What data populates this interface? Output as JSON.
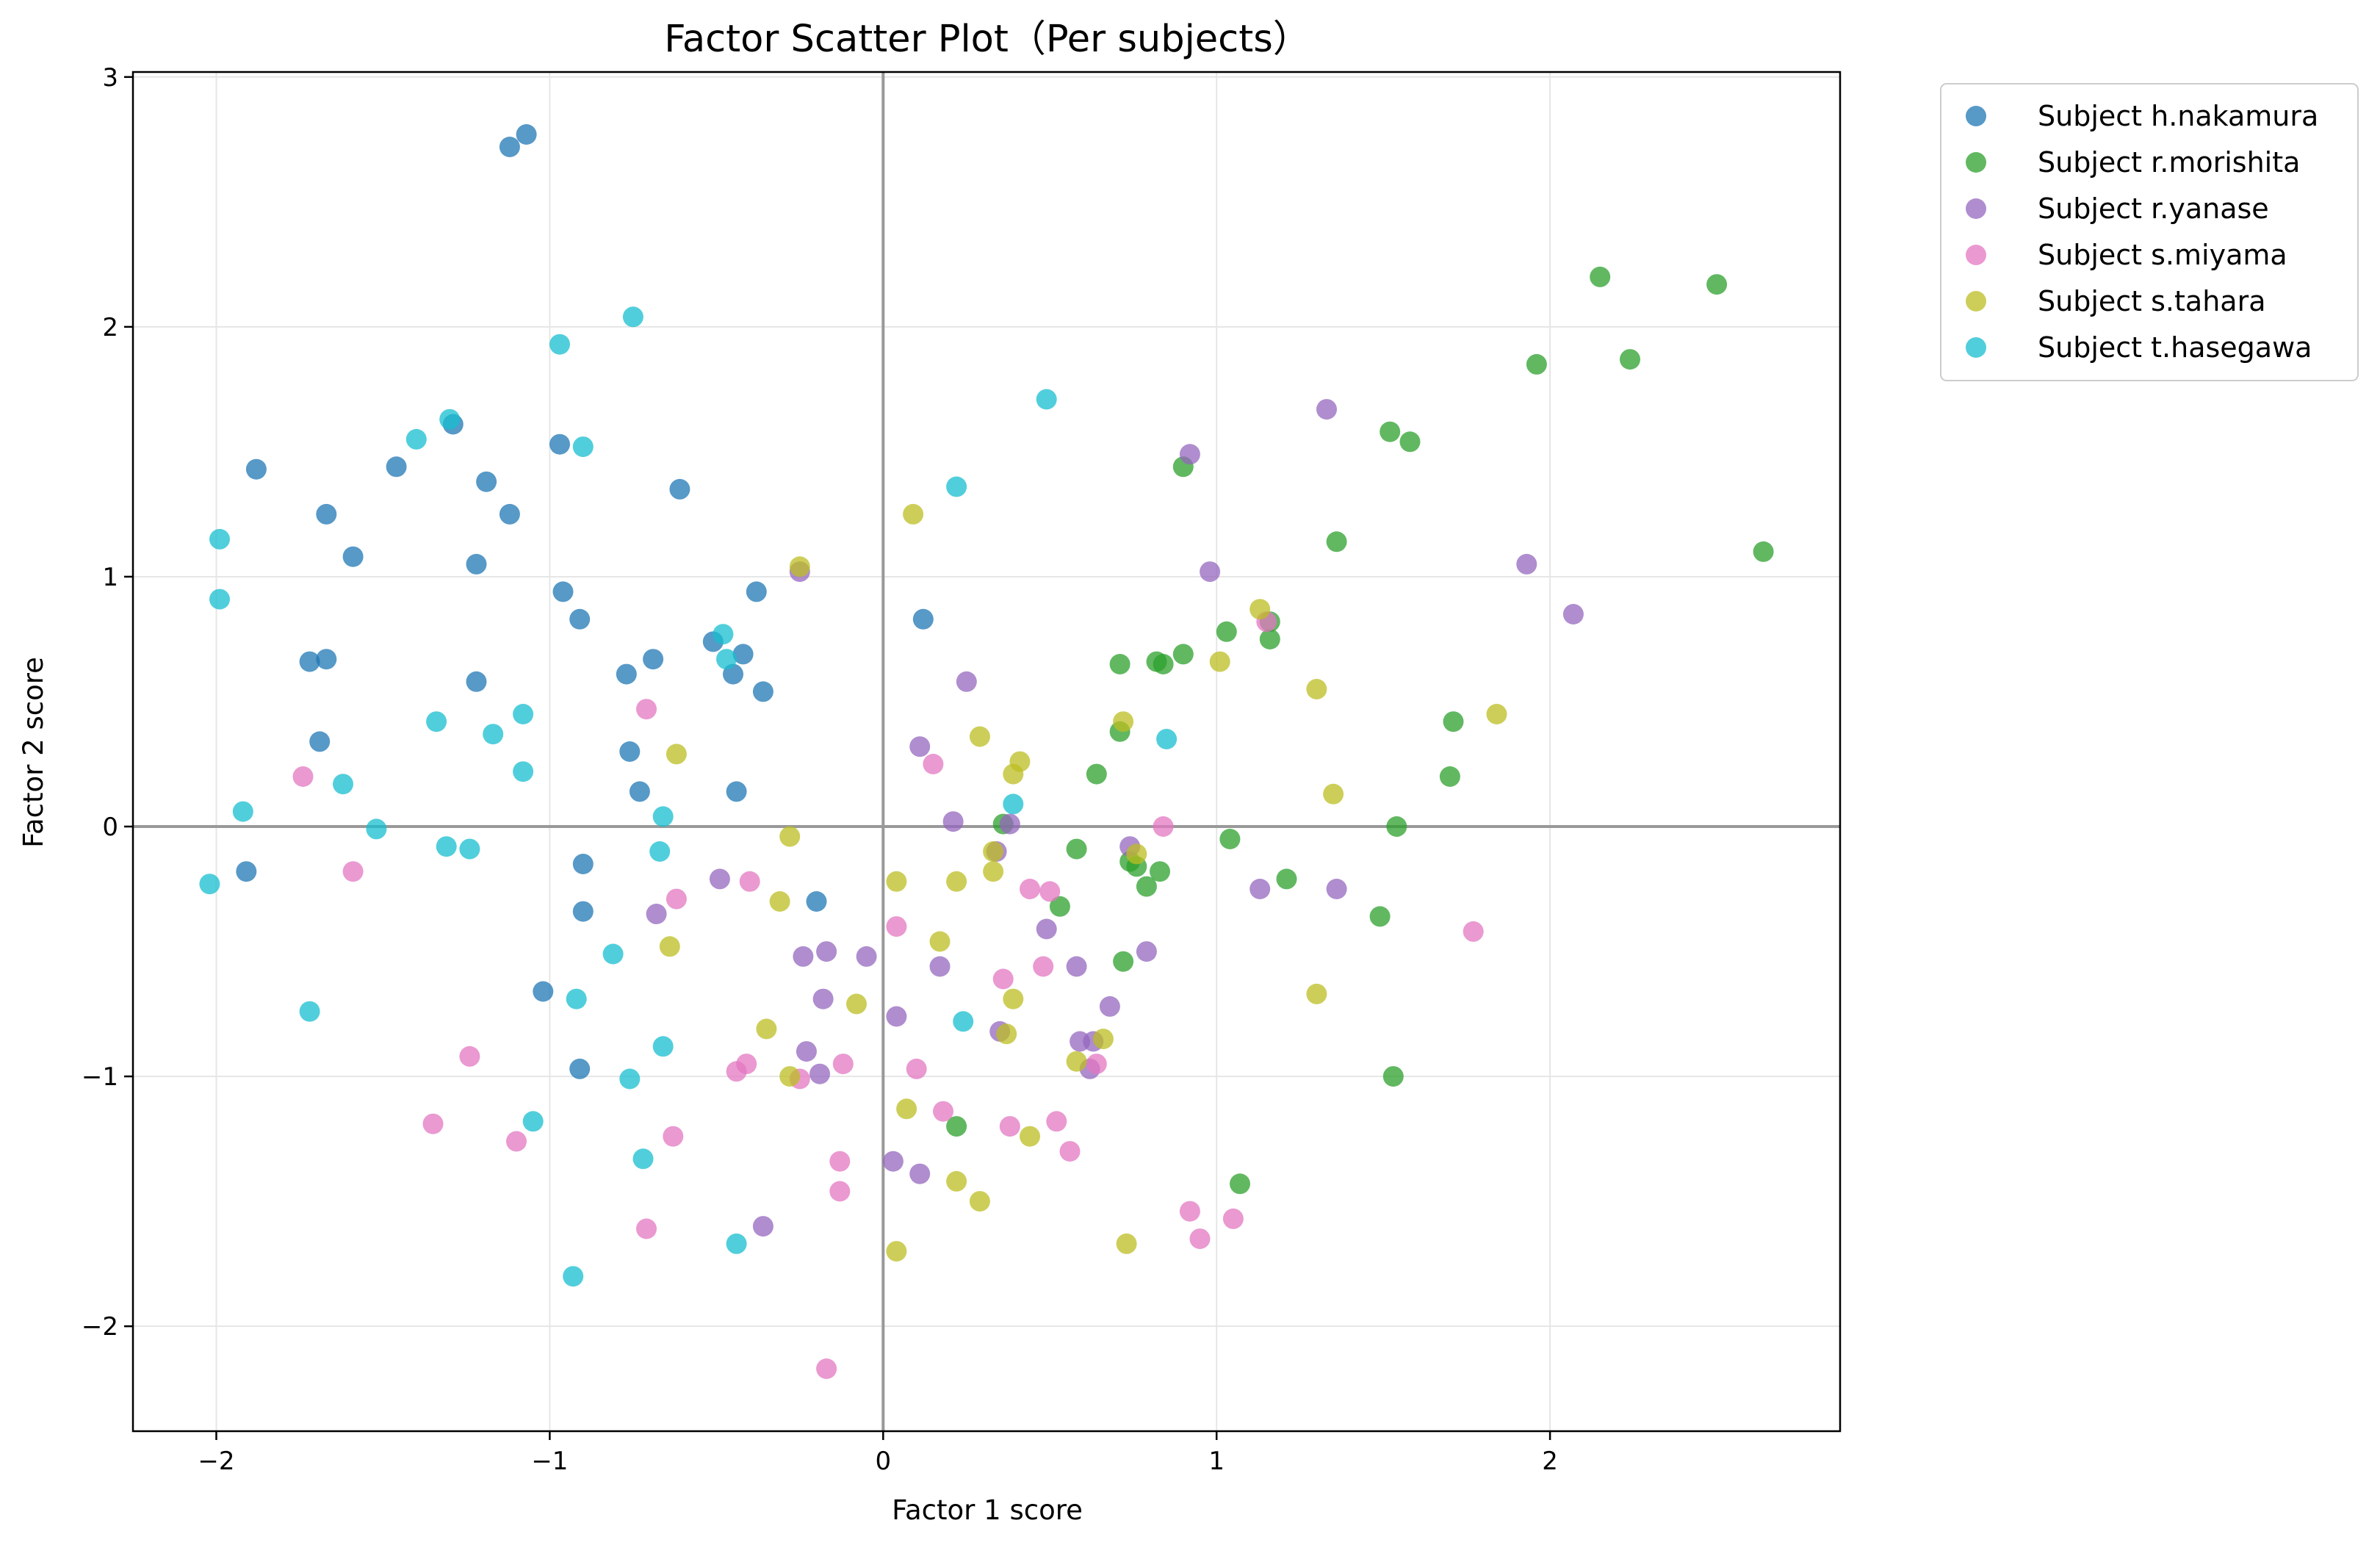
{
  "chart_data": {
    "type": "scatter",
    "title": "Factor Scatter Plot（Per subjects）",
    "xlabel": "Factor 1 score",
    "ylabel": "Factor 2 score",
    "xlim": [
      -2.25,
      2.87
    ],
    "ylim": [
      -2.42,
      3.02
    ],
    "xticks": [
      -2,
      -1,
      0,
      1,
      2
    ],
    "yticks": [
      -2,
      -1,
      0,
      1,
      2,
      3
    ],
    "xtick_labels": [
      "−2",
      "−1",
      "0",
      "1",
      "2"
    ],
    "ytick_labels": [
      "−2",
      "−1",
      "0",
      "1",
      "2",
      "3"
    ],
    "grid": true,
    "reference_lines": {
      "x": 0,
      "y": 0
    },
    "legend_position": "outside-top-right",
    "series": [
      {
        "name": "Subject h.nakamura",
        "color": "#1f77b4",
        "points": [
          [
            -1.07,
            2.77
          ],
          [
            -1.12,
            2.72
          ],
          [
            -1.88,
            1.43
          ],
          [
            -1.67,
            1.25
          ],
          [
            -1.59,
            1.08
          ],
          [
            -1.46,
            1.44
          ],
          [
            -1.29,
            1.61
          ],
          [
            -1.19,
            1.38
          ],
          [
            -1.12,
            1.25
          ],
          [
            -1.22,
            1.05
          ],
          [
            -0.97,
            1.53
          ],
          [
            -0.61,
            1.35
          ],
          [
            -0.96,
            0.94
          ],
          [
            -0.91,
            0.83
          ],
          [
            -0.38,
            0.94
          ],
          [
            -1.72,
            0.66
          ],
          [
            -1.67,
            0.67
          ],
          [
            -1.22,
            0.58
          ],
          [
            -0.77,
            0.61
          ],
          [
            -0.69,
            0.67
          ],
          [
            -0.51,
            0.74
          ],
          [
            -0.42,
            0.69
          ],
          [
            -0.45,
            0.61
          ],
          [
            -0.36,
            0.54
          ],
          [
            -1.69,
            0.34
          ],
          [
            -0.76,
            0.3
          ],
          [
            -0.73,
            0.14
          ],
          [
            -0.44,
            0.14
          ],
          [
            -1.91,
            -0.18
          ],
          [
            -0.9,
            -0.15
          ],
          [
            -0.9,
            -0.34
          ],
          [
            -0.2,
            -0.3
          ],
          [
            -1.02,
            -0.66
          ],
          [
            -0.91,
            -0.97
          ],
          [
            0.12,
            0.83
          ]
        ]
      },
      {
        "name": "Subject r.morishita",
        "color": "#2ca02c",
        "points": [
          [
            2.15,
            2.2
          ],
          [
            2.5,
            2.17
          ],
          [
            1.96,
            1.85
          ],
          [
            2.24,
            1.87
          ],
          [
            1.52,
            1.58
          ],
          [
            1.58,
            1.54
          ],
          [
            0.9,
            1.44
          ],
          [
            1.36,
            1.14
          ],
          [
            2.64,
            1.1
          ],
          [
            1.03,
            0.78
          ],
          [
            1.16,
            0.82
          ],
          [
            1.16,
            0.75
          ],
          [
            0.71,
            0.65
          ],
          [
            0.82,
            0.66
          ],
          [
            0.84,
            0.65
          ],
          [
            0.9,
            0.69
          ],
          [
            0.71,
            0.38
          ],
          [
            1.71,
            0.42
          ],
          [
            0.64,
            0.21
          ],
          [
            1.7,
            0.2
          ],
          [
            0.36,
            0.01
          ],
          [
            1.54,
            0.0
          ],
          [
            1.04,
            -0.05
          ],
          [
            0.58,
            -0.09
          ],
          [
            0.74,
            -0.14
          ],
          [
            0.76,
            -0.16
          ],
          [
            0.83,
            -0.18
          ],
          [
            1.21,
            -0.21
          ],
          [
            0.79,
            -0.24
          ],
          [
            0.53,
            -0.32
          ],
          [
            1.49,
            -0.36
          ],
          [
            0.72,
            -0.54
          ],
          [
            1.53,
            -1.0
          ],
          [
            0.22,
            -1.2
          ],
          [
            1.07,
            -1.43
          ]
        ]
      },
      {
        "name": "Subject r.yanase",
        "color": "#9467bd",
        "points": [
          [
            1.33,
            1.67
          ],
          [
            0.92,
            1.49
          ],
          [
            0.98,
            1.02
          ],
          [
            1.93,
            1.05
          ],
          [
            2.07,
            0.85
          ],
          [
            -0.25,
            1.02
          ],
          [
            0.25,
            0.58
          ],
          [
            0.11,
            0.32
          ],
          [
            0.21,
            0.02
          ],
          [
            0.38,
            0.01
          ],
          [
            0.34,
            -0.1
          ],
          [
            0.74,
            -0.08
          ],
          [
            -0.49,
            -0.21
          ],
          [
            1.13,
            -0.25
          ],
          [
            1.36,
            -0.25
          ],
          [
            -0.68,
            -0.35
          ],
          [
            0.49,
            -0.41
          ],
          [
            -0.24,
            -0.52
          ],
          [
            -0.17,
            -0.5
          ],
          [
            -0.05,
            -0.52
          ],
          [
            0.17,
            -0.56
          ],
          [
            0.58,
            -0.56
          ],
          [
            0.79,
            -0.5
          ],
          [
            -0.18,
            -0.69
          ],
          [
            0.04,
            -0.76
          ],
          [
            0.68,
            -0.72
          ],
          [
            0.35,
            -0.82
          ],
          [
            0.59,
            -0.86
          ],
          [
            0.63,
            -0.86
          ],
          [
            -0.23,
            -0.9
          ],
          [
            0.62,
            -0.97
          ],
          [
            -0.19,
            -0.99
          ],
          [
            0.03,
            -1.34
          ],
          [
            0.11,
            -1.39
          ],
          [
            -0.36,
            -1.6
          ]
        ]
      },
      {
        "name": "Subject s.miyama",
        "color": "#e377c2",
        "points": [
          [
            -0.71,
            0.47
          ],
          [
            1.15,
            0.82
          ],
          [
            -1.74,
            0.2
          ],
          [
            0.15,
            0.25
          ],
          [
            0.84,
            0.0
          ],
          [
            -1.59,
            -0.18
          ],
          [
            -0.4,
            -0.22
          ],
          [
            -0.62,
            -0.29
          ],
          [
            0.44,
            -0.25
          ],
          [
            0.5,
            -0.26
          ],
          [
            0.04,
            -0.4
          ],
          [
            1.77,
            -0.42
          ],
          [
            0.48,
            -0.56
          ],
          [
            0.36,
            -0.61
          ],
          [
            -1.24,
            -0.92
          ],
          [
            -0.44,
            -0.98
          ],
          [
            -0.41,
            -0.95
          ],
          [
            -0.25,
            -1.01
          ],
          [
            -0.12,
            -0.95
          ],
          [
            0.1,
            -0.97
          ],
          [
            0.64,
            -0.95
          ],
          [
            0.18,
            -1.14
          ],
          [
            0.52,
            -1.18
          ],
          [
            0.38,
            -1.2
          ],
          [
            -1.35,
            -1.19
          ],
          [
            -0.63,
            -1.24
          ],
          [
            -1.1,
            -1.26
          ],
          [
            0.56,
            -1.3
          ],
          [
            -0.13,
            -1.34
          ],
          [
            -0.13,
            -1.46
          ],
          [
            0.92,
            -1.54
          ],
          [
            1.05,
            -1.57
          ],
          [
            -0.71,
            -1.61
          ],
          [
            0.95,
            -1.65
          ],
          [
            -0.17,
            -2.17
          ]
        ]
      },
      {
        "name": "Subject s.tahara",
        "color": "#bcbd22",
        "points": [
          [
            0.09,
            1.25
          ],
          [
            -0.25,
            1.04
          ],
          [
            1.13,
            0.87
          ],
          [
            1.01,
            0.66
          ],
          [
            1.3,
            0.55
          ],
          [
            1.84,
            0.45
          ],
          [
            0.72,
            0.42
          ],
          [
            0.29,
            0.36
          ],
          [
            -0.62,
            0.29
          ],
          [
            0.41,
            0.26
          ],
          [
            0.39,
            0.21
          ],
          [
            1.35,
            0.13
          ],
          [
            -0.28,
            -0.04
          ],
          [
            0.33,
            -0.1
          ],
          [
            0.76,
            -0.11
          ],
          [
            0.33,
            -0.18
          ],
          [
            0.04,
            -0.22
          ],
          [
            0.22,
            -0.22
          ],
          [
            -0.31,
            -0.3
          ],
          [
            0.17,
            -0.46
          ],
          [
            -0.64,
            -0.48
          ],
          [
            1.3,
            -0.67
          ],
          [
            0.39,
            -0.69
          ],
          [
            -0.08,
            -0.71
          ],
          [
            -0.35,
            -0.81
          ],
          [
            0.37,
            -0.83
          ],
          [
            0.66,
            -0.85
          ],
          [
            0.58,
            -0.94
          ],
          [
            -0.28,
            -1.0
          ],
          [
            0.07,
            -1.13
          ],
          [
            0.44,
            -1.24
          ],
          [
            0.22,
            -1.42
          ],
          [
            0.29,
            -1.5
          ],
          [
            0.73,
            -1.67
          ],
          [
            0.04,
            -1.7
          ]
        ]
      },
      {
        "name": "Subject t.hasegawa",
        "color": "#17becf",
        "points": [
          [
            -0.75,
            2.04
          ],
          [
            -0.97,
            1.93
          ],
          [
            0.49,
            1.71
          ],
          [
            -1.3,
            1.63
          ],
          [
            -1.4,
            1.55
          ],
          [
            -0.9,
            1.52
          ],
          [
            0.22,
            1.36
          ],
          [
            -1.99,
            1.15
          ],
          [
            -1.99,
            0.91
          ],
          [
            -0.48,
            0.77
          ],
          [
            -0.47,
            0.67
          ],
          [
            -1.08,
            0.45
          ],
          [
            -1.34,
            0.42
          ],
          [
            -1.17,
            0.37
          ],
          [
            0.85,
            0.35
          ],
          [
            -1.08,
            0.22
          ],
          [
            -1.62,
            0.17
          ],
          [
            0.39,
            0.09
          ],
          [
            -1.92,
            0.06
          ],
          [
            -0.66,
            0.04
          ],
          [
            -1.52,
            -0.01
          ],
          [
            -1.31,
            -0.08
          ],
          [
            -1.24,
            -0.09
          ],
          [
            -0.67,
            -0.1
          ],
          [
            -2.02,
            -0.23
          ],
          [
            -0.81,
            -0.51
          ],
          [
            -0.92,
            -0.69
          ],
          [
            -1.72,
            -0.74
          ],
          [
            0.24,
            -0.78
          ],
          [
            -0.66,
            -0.88
          ],
          [
            -0.76,
            -1.01
          ],
          [
            -1.05,
            -1.18
          ],
          [
            -0.72,
            -1.33
          ],
          [
            -0.44,
            -1.67
          ],
          [
            -0.93,
            -1.8
          ]
        ]
      }
    ]
  }
}
